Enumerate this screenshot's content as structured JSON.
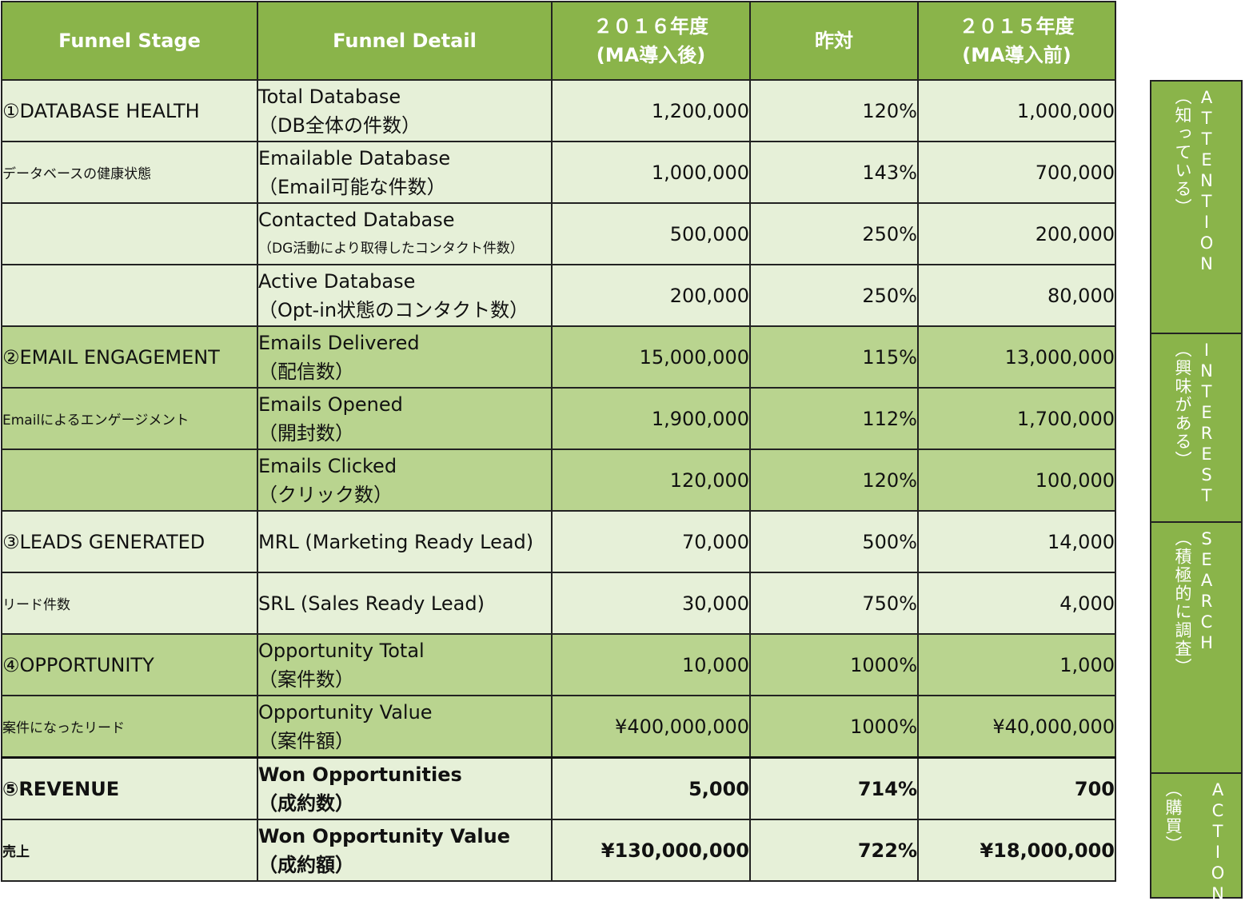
{
  "table": {
    "headers": {
      "stage": "Funnel Stage",
      "detail": "Funnel Detail",
      "y2016_line1": "２０１６年度",
      "y2016_line2": "(MA導入後)",
      "yoy": "昨対",
      "y2015_line1": "２０１５年度",
      "y2015_line2": "(MA導入前)"
    },
    "rows": [
      {
        "stage": "①DATABASE HEALTH",
        "detail1": "Total Database",
        "detail2": "（DB全体の件数）",
        "v2016": "1,200,000",
        "yoy": "120%",
        "v2015": "1,000,000"
      },
      {
        "stage": "データベースの健康状態",
        "detail1": "Emailable Database",
        "detail2": "（Email可能な件数）",
        "v2016": "1,000,000",
        "yoy": "143%",
        "v2015": "700,000"
      },
      {
        "stage": "",
        "detail1": "Contacted Database",
        "detail2": "（DG活動により取得したコンタクト件数）",
        "v2016": "500,000",
        "yoy": "250%",
        "v2015": "200,000"
      },
      {
        "stage": "",
        "detail1": "Active Database",
        "detail2": "（Opt-in状態のコンタクト数）",
        "v2016": "200,000",
        "yoy": "250%",
        "v2015": "80,000"
      },
      {
        "stage": "②EMAIL ENGAGEMENT",
        "detail1": "Emails Delivered",
        "detail2": "（配信数）",
        "v2016": "15,000,000",
        "yoy": "115%",
        "v2015": "13,000,000"
      },
      {
        "stage": "Emailによるエンゲージメント",
        "detail1": "Emails Opened",
        "detail2": "（開封数）",
        "v2016": "1,900,000",
        "yoy": "112%",
        "v2015": "1,700,000"
      },
      {
        "stage": "",
        "detail1": "Emails Clicked",
        "detail2": "（クリック数）",
        "v2016": "120,000",
        "yoy": "120%",
        "v2015": "100,000"
      },
      {
        "stage": "③LEADS GENERATED",
        "detail1": "MRL (Marketing Ready Lead)",
        "detail2": "",
        "v2016": "70,000",
        "yoy": "500%",
        "v2015": "14,000"
      },
      {
        "stage": "リード件数",
        "detail1": "SRL (Sales Ready Lead)",
        "detail2": "",
        "v2016": "30,000",
        "yoy": "750%",
        "v2015": "4,000"
      },
      {
        "stage": "④OPPORTUNITY",
        "detail1": "Opportunity Total",
        "detail2": "（案件数）",
        "v2016": "10,000",
        "yoy": "1000%",
        "v2015": "1,000"
      },
      {
        "stage": "案件になったリード",
        "detail1": "Opportunity Value",
        "detail2": "（案件額）",
        "v2016": "¥400,000,000",
        "yoy": "1000%",
        "v2015": "¥40,000,000"
      },
      {
        "stage": "⑤REVENUE",
        "detail1": "Won Opportunities",
        "detail2": "（成約数）",
        "v2016": "5,000",
        "yoy": "714%",
        "v2015": "700"
      },
      {
        "stage": "売上",
        "detail1": "Won Opportunity Value",
        "detail2": "（成約額）",
        "v2016": "¥130,000,000",
        "yoy": "722%",
        "v2015": "¥18,000,000"
      }
    ]
  },
  "side_labels": [
    {
      "en": "ATTENTION",
      "jp": "（知っている）"
    },
    {
      "en": "INTEREST",
      "jp": "（興味がある）"
    },
    {
      "en": "SEARCH",
      "jp": "（積極的に調査）"
    },
    {
      "en": "ACTION",
      "jp": "（購買）"
    }
  ],
  "colors": {
    "header_green": "#8ab44a",
    "light_green": "#e6f0d8",
    "mid_green": "#b9d48f"
  }
}
